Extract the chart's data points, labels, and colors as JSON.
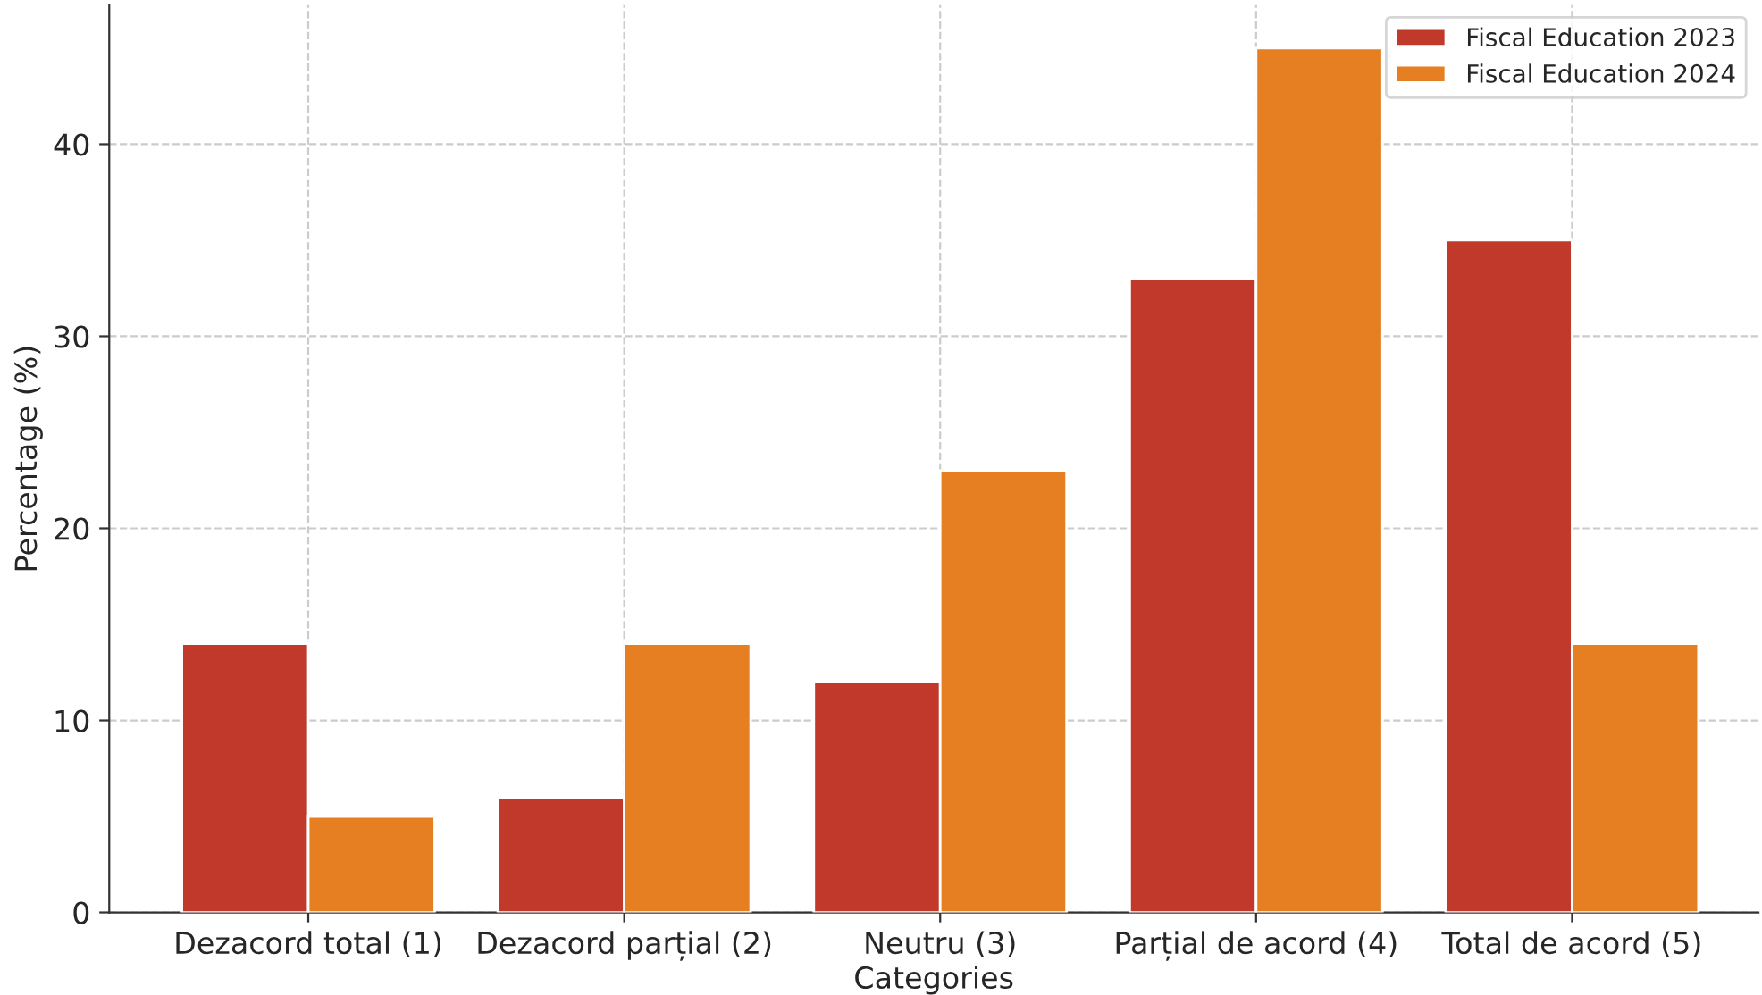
{
  "chart_data": {
    "type": "bar",
    "xlabel": "Categories",
    "ylabel": "Percentage (%)",
    "categories": [
      "Dezacord total (1)",
      "Dezacord parțial (2)",
      "Neutru (3)",
      "Parțial de acord (4)",
      "Total de acord (5)"
    ],
    "series": [
      {
        "name": "Fiscal Education 2023",
        "color": "#c0392b",
        "values": [
          14,
          6,
          12,
          33,
          35
        ]
      },
      {
        "name": "Fiscal Education 2024",
        "color": "#e67e22",
        "values": [
          5,
          14,
          23,
          45,
          14
        ]
      }
    ],
    "ylim": [
      0,
      47.25
    ],
    "yticks": [
      0,
      10,
      20,
      30,
      40
    ],
    "grid": true,
    "legend": "top right"
  }
}
